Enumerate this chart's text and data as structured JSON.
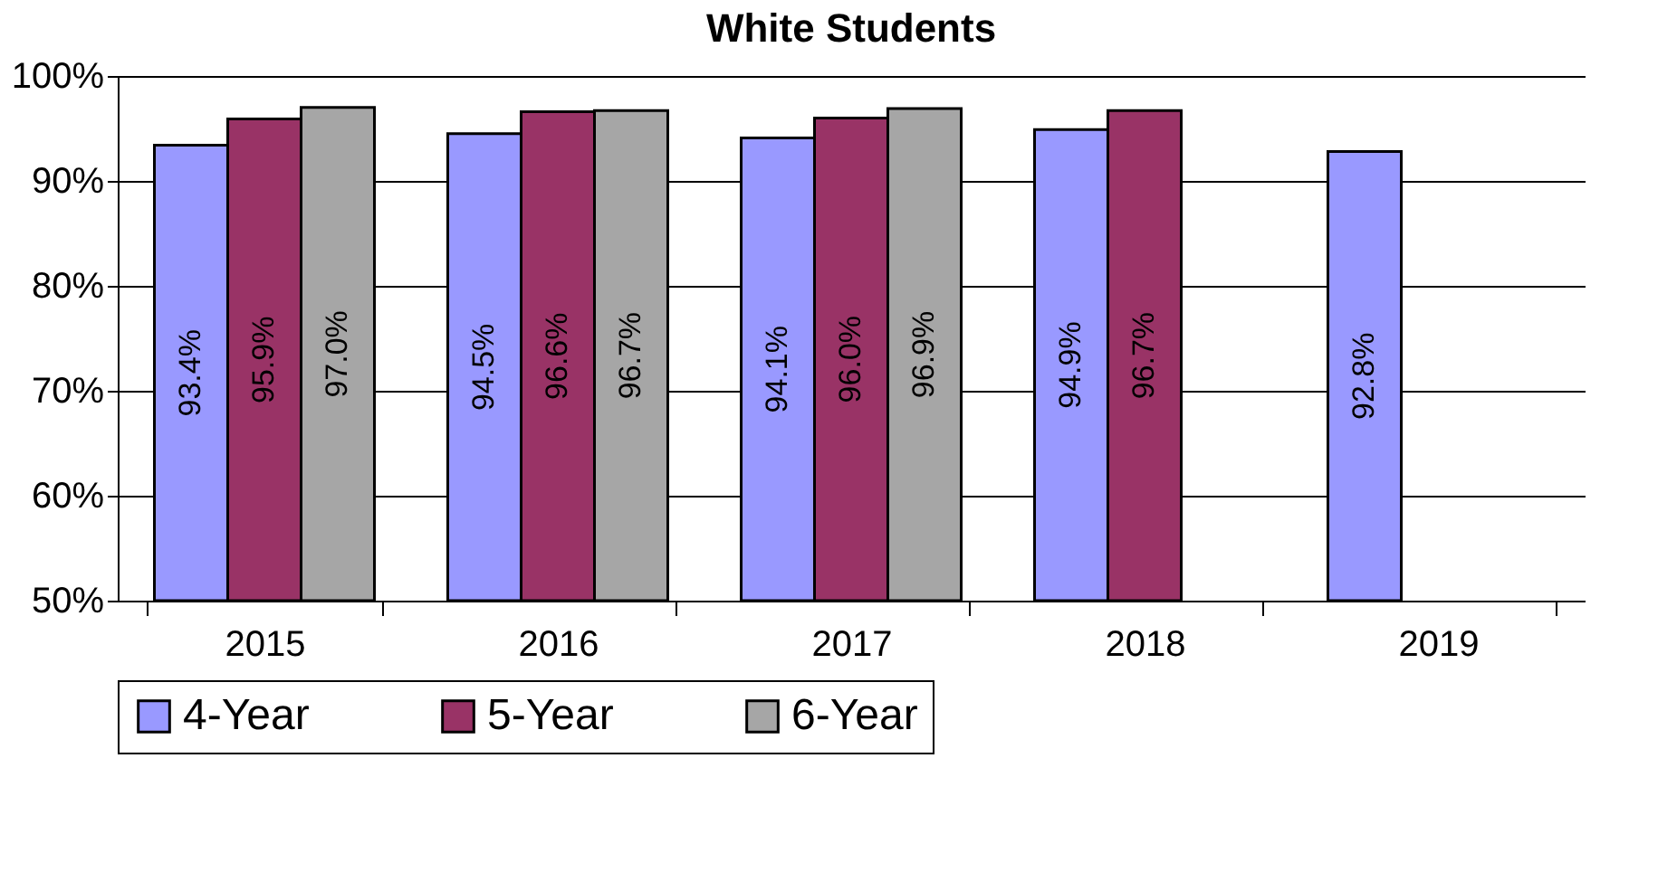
{
  "chart_data": {
    "type": "bar",
    "title": "White Students",
    "categories": [
      "2015",
      "2016",
      "2017",
      "2018",
      "2019"
    ],
    "series": [
      {
        "name": "4-Year",
        "color": "#9999ff",
        "values": [
          93.4,
          94.5,
          94.1,
          94.9,
          92.8
        ],
        "value_labels": [
          "93.4%",
          "94.5%",
          "94.1%",
          "94.9%",
          "92.8%"
        ]
      },
      {
        "name": "5-Year",
        "color": "#993366",
        "values": [
          95.9,
          96.6,
          96.0,
          96.7,
          null
        ],
        "value_labels": [
          "95.9%",
          "96.6%",
          "96.0%",
          "96.7%",
          null
        ]
      },
      {
        "name": "6-Year",
        "color": "#a6a6a6",
        "values": [
          97.0,
          96.7,
          96.9,
          null,
          null
        ],
        "value_labels": [
          "97.0%",
          "96.7%",
          "96.9%",
          null,
          null
        ]
      }
    ],
    "ylim": [
      50,
      100
    ],
    "yticks": [
      {
        "value": 50,
        "label": "50%"
      },
      {
        "value": 60,
        "label": "60%"
      },
      {
        "value": 70,
        "label": "70%"
      },
      {
        "value": 80,
        "label": "80%"
      },
      {
        "value": 90,
        "label": "90%"
      },
      {
        "value": 100,
        "label": "100%"
      }
    ],
    "grid": "y",
    "legend": "bottom"
  }
}
